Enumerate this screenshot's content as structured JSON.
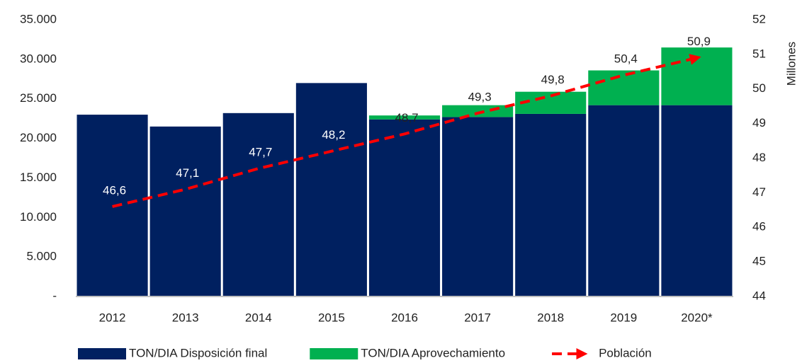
{
  "chart_data": {
    "type": "bar",
    "stacked": true,
    "categories": [
      "2012",
      "2013",
      "2014",
      "2015",
      "2016",
      "2017",
      "2018",
      "2019",
      "2020*"
    ],
    "series": [
      {
        "name": "TON/DIA Disposición final",
        "color": "#002060",
        "values": [
          23000,
          21500,
          23200,
          27000,
          22400,
          22700,
          23100,
          24200,
          24200
        ]
      },
      {
        "name": "TON/DIA Aprovechamiento",
        "color": "#00b050",
        "values": [
          null,
          null,
          null,
          null,
          500,
          1500,
          2800,
          4400,
          7300
        ]
      },
      {
        "name": "Población",
        "color": "#ff0000",
        "type": "line",
        "axis": "y2",
        "values": [
          46.6,
          47.1,
          47.7,
          48.2,
          48.7,
          49.3,
          49.8,
          50.4,
          50.9
        ],
        "value_labels": [
          "46,6",
          "47,1",
          "47,7",
          "48,2",
          "48,7",
          "49,3",
          "49,8",
          "50,4",
          "50,9"
        ]
      }
    ],
    "ylim": [
      0,
      35000
    ],
    "yticks": [
      {
        "value": 0,
        "label": "-"
      },
      {
        "value": 5000,
        "label": "5.000"
      },
      {
        "value": 10000,
        "label": "10.000"
      },
      {
        "value": 15000,
        "label": "15.000"
      },
      {
        "value": 20000,
        "label": "20.000"
      },
      {
        "value": 25000,
        "label": "25.000"
      },
      {
        "value": 30000,
        "label": "30.000"
      },
      {
        "value": 35000,
        "label": "35.000"
      }
    ],
    "y2lim": [
      44,
      52
    ],
    "y2ticks": [
      44,
      45,
      46,
      47,
      48,
      49,
      50,
      51,
      52
    ],
    "y2label": "Millones",
    "legend": "bottom"
  }
}
